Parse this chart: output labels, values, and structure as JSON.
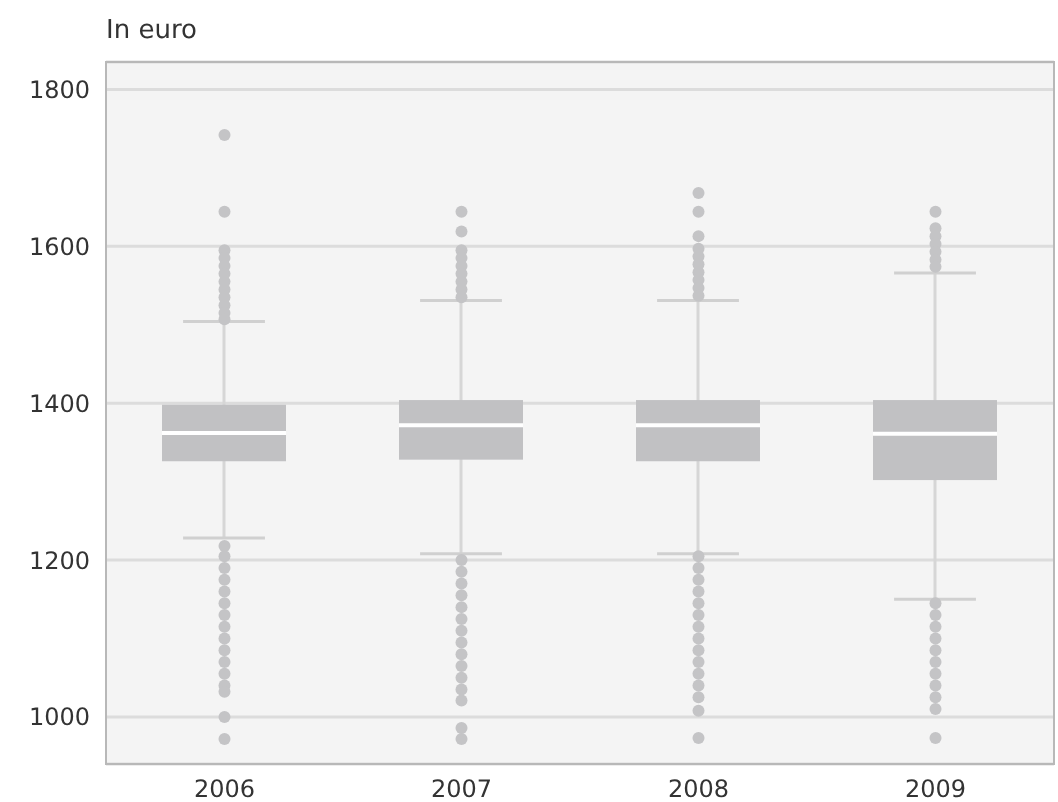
{
  "chart_data": {
    "type": "box",
    "ylabel": "In euro",
    "categories": [
      "2006",
      "2007",
      "2008",
      "2009"
    ],
    "color": "#c1c1c3",
    "ylim": [
      940,
      1835
    ],
    "yticks": [
      1000,
      1200,
      1400,
      1600,
      1800
    ],
    "grid": "y",
    "boxes": [
      {
        "low": 1228,
        "q1": 1326,
        "median": 1362,
        "q3": 1398,
        "high": 1504,
        "outliers": [
          1742,
          1644,
          1595,
          1585,
          1575,
          1565,
          1555,
          1545,
          1535,
          1525,
          1515,
          1507,
          1218,
          1205,
          1190,
          1175,
          1160,
          1145,
          1130,
          1115,
          1100,
          1085,
          1070,
          1055,
          1040,
          1032,
          1000,
          972
        ]
      },
      {
        "low": 1208,
        "q1": 1328,
        "median": 1372,
        "q3": 1404,
        "high": 1531,
        "outliers": [
          1644,
          1619,
          1595,
          1585,
          1575,
          1565,
          1555,
          1545,
          1535,
          1200,
          1185,
          1170,
          1155,
          1140,
          1125,
          1110,
          1095,
          1080,
          1065,
          1050,
          1035,
          1021,
          986,
          972
        ]
      },
      {
        "low": 1208,
        "q1": 1326,
        "median": 1372,
        "q3": 1404,
        "high": 1531,
        "outliers": [
          1668,
          1644,
          1613,
          1597,
          1587,
          1577,
          1567,
          1557,
          1547,
          1537,
          1205,
          1190,
          1175,
          1160,
          1145,
          1130,
          1115,
          1100,
          1085,
          1070,
          1055,
          1040,
          1025,
          1008,
          973
        ]
      },
      {
        "low": 1150,
        "q1": 1302,
        "median": 1361,
        "q3": 1404,
        "high": 1566,
        "outliers": [
          1644,
          1623,
          1613,
          1603,
          1593,
          1583,
          1574,
          1145,
          1130,
          1115,
          1100,
          1085,
          1070,
          1055,
          1040,
          1025,
          1010,
          973
        ]
      }
    ]
  }
}
